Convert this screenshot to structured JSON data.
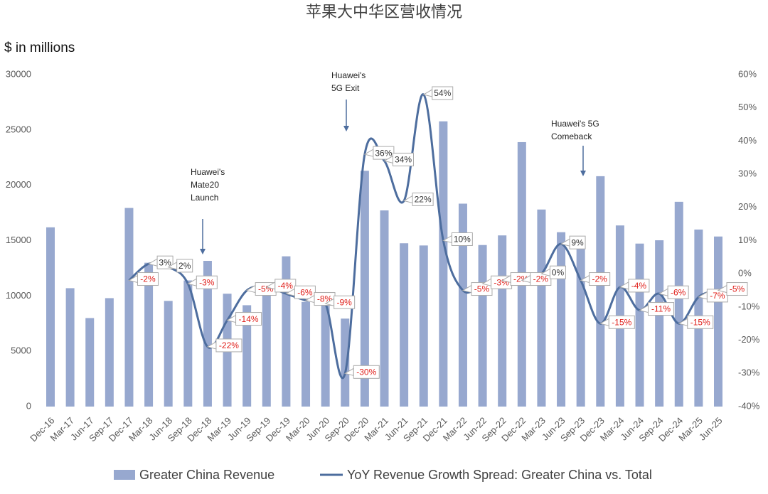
{
  "chart_data": {
    "type": "bar-line",
    "title": "苹果大中华区营收情况",
    "y_label": "$ in millions",
    "categories": [
      "Dec-16",
      "Mar-17",
      "Jun-17",
      "Sep-17",
      "Dec-17",
      "Mar-18",
      "Jun-18",
      "Sep-18",
      "Dec-18",
      "Mar-19",
      "Jun-19",
      "Sep-19",
      "Dec-19",
      "Mar-20",
      "Jun-20",
      "Sep-20",
      "Dec-20",
      "Mar-21",
      "Jun-21",
      "Sep-21",
      "Dec-21",
      "Mar-22",
      "Jun-22",
      "Sep-22",
      "Dec-22",
      "Mar-23",
      "Jun-23",
      "Sep-23",
      "Dec-23",
      "Mar-24",
      "Jun-24",
      "Sep-24",
      "Dec-24",
      "Mar-25",
      "Jun-25"
    ],
    "series": [
      {
        "name": "Greater China Revenue",
        "type": "bar",
        "color": "#97a8cf",
        "values": [
          16200,
          10700,
          8000,
          9800,
          17950,
          13000,
          9550,
          11400,
          13170,
          10200,
          9160,
          11000,
          13580,
          9460,
          9330,
          7950,
          21310,
          17730,
          14760,
          14560,
          25780,
          18340,
          14600,
          15470,
          23900,
          17810,
          15760,
          15080,
          20820,
          16370,
          14730,
          15030,
          18510,
          16000,
          15370
        ]
      },
      {
        "name": "YoY Revenue Growth Spread: Greater China vs. Total",
        "type": "line",
        "axis": "y2",
        "color": "#4d6d9e",
        "values": [
          null,
          null,
          null,
          null,
          -2,
          3,
          2,
          -3,
          -22,
          -14,
          -5,
          -4,
          -6,
          -8,
          -9,
          -30,
          36,
          34,
          22,
          54,
          10,
          -5,
          -3,
          -2,
          -2,
          0,
          9,
          -2,
          -15,
          -4,
          -11,
          -6,
          -15,
          -7,
          -5
        ],
        "value_labels": [
          null,
          null,
          null,
          null,
          "-2%",
          "3%",
          "2%",
          "-3%",
          "-22%",
          "-14%",
          "-5%",
          "-4%",
          "-6%",
          "-8%",
          "-9%",
          "-30%",
          "36%",
          "34%",
          "22%",
          "54%",
          "10%",
          "-5%",
          "-3%",
          "-2%",
          "-2%",
          "0%",
          "9%",
          "-2%",
          "-15%",
          "-4%",
          "-11%",
          "-6%",
          "-15%",
          "-7%",
          "-5%"
        ]
      }
    ],
    "ylim": [
      0,
      30000
    ],
    "yticks": [
      0,
      5000,
      10000,
      15000,
      20000,
      25000,
      30000
    ],
    "y2lim": [
      -40,
      60
    ],
    "y2ticks": [
      {
        "value": -40,
        "label": "-40%"
      },
      {
        "value": -30,
        "label": "-30%"
      },
      {
        "value": -20,
        "label": "-20%"
      },
      {
        "value": -10,
        "label": "-10%"
      },
      {
        "value": 0,
        "label": "0%"
      },
      {
        "value": 10,
        "label": "10%"
      },
      {
        "value": 20,
        "label": "20%"
      },
      {
        "value": 30,
        "label": "30%"
      },
      {
        "value": 40,
        "label": "40%"
      },
      {
        "value": 50,
        "label": "50%"
      },
      {
        "value": 60,
        "label": "60%"
      }
    ],
    "annotations": [
      {
        "lines": [
          "Huawei's",
          "Mate20",
          "Launch"
        ]
      },
      {
        "lines": [
          "Huawei's",
          "5G Exit"
        ]
      },
      {
        "lines": [
          "Huawei's 5G",
          "Comeback"
        ]
      }
    ],
    "legend": "bottom"
  }
}
